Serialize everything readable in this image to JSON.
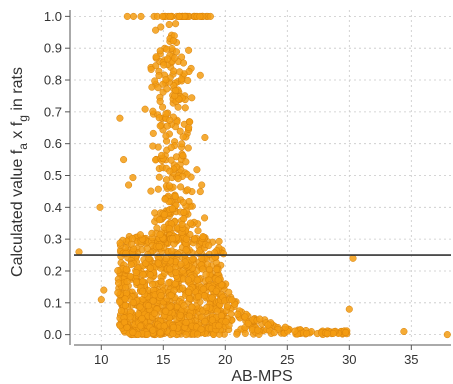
{
  "chart_data": {
    "type": "scatter",
    "title": "",
    "xlabel": "AB-MPS",
    "ylabel_main": "Calculated value f",
    "ylabel_sub1": "a",
    "ylabel_mid": " x f",
    "ylabel_sub2": "g",
    "ylabel_tail": " in rats",
    "xlim": [
      7.8,
      38.2
    ],
    "ylim": [
      -0.02,
      1.02
    ],
    "x_ticks": [
      10,
      15,
      20,
      25,
      30,
      35
    ],
    "y_ticks": [
      0.0,
      0.1,
      0.2,
      0.3,
      0.4,
      0.5,
      0.6,
      0.7,
      0.8,
      0.9,
      1.0
    ],
    "grid": true,
    "reference_line_y": 0.25,
    "marker_color": "#f39c12",
    "marker_edge_color": "#d9820a",
    "line_color": "#333333",
    "axis_color": "#555555",
    "grid_color": "#c8c8c8",
    "outliers": [
      {
        "x": 8.2,
        "y": 0.26
      },
      {
        "x": 9.9,
        "y": 0.4
      },
      {
        "x": 10.2,
        "y": 0.14
      },
      {
        "x": 10.0,
        "y": 0.11
      },
      {
        "x": 30.3,
        "y": 0.24
      },
      {
        "x": 30.0,
        "y": 0.08
      },
      {
        "x": 34.4,
        "y": 0.01
      },
      {
        "x": 37.9,
        "y": 0.0
      },
      {
        "x": 12.1,
        "y": 1.0
      },
      {
        "x": 12.6,
        "y": 1.0
      },
      {
        "x": 13.2,
        "y": 1.0
      },
      {
        "x": 11.5,
        "y": 0.68
      },
      {
        "x": 11.8,
        "y": 0.55
      },
      {
        "x": 12.2,
        "y": 0.47
      }
    ]
  }
}
